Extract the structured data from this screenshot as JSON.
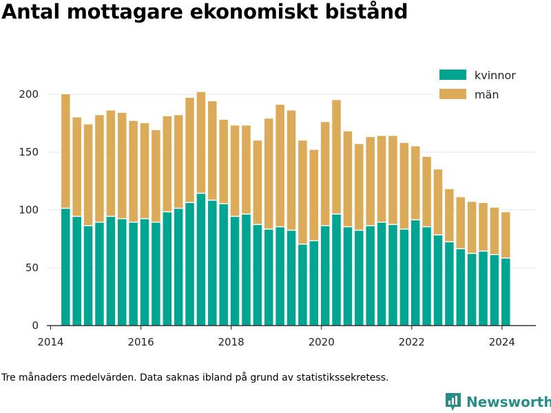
{
  "title": "Antal mottagare ekonomiskt bistånd",
  "footnote": "Tre månaders medelvärden. Data saknas ibland på grund av statistikssekretess.",
  "brand": {
    "name": "Newsworthy",
    "color": "#2a8c86"
  },
  "colors": {
    "kvinnor": "#00a591",
    "man": "#dbab5a",
    "grid": "#e3e3e3",
    "axis": "#333333"
  },
  "chart_data": {
    "type": "bar",
    "stacked": true,
    "legend_position": "top-right",
    "grid": true,
    "x_ticks": [
      "2014",
      "2016",
      "2018",
      "2020",
      "2022",
      "2024"
    ],
    "y_ticks": [
      "0",
      "50",
      "100",
      "150",
      "200"
    ],
    "xlim": [
      "2013-12",
      "2024-10"
    ],
    "ylim": [
      0,
      210
    ],
    "x": [
      "2014-05",
      "2014-08",
      "2014-11",
      "2015-02",
      "2015-05",
      "2015-08",
      "2015-11",
      "2016-02",
      "2016-05",
      "2016-08",
      "2016-11",
      "2017-02",
      "2017-05",
      "2017-08",
      "2017-11",
      "2018-02",
      "2018-05",
      "2018-08",
      "2018-11",
      "2019-02",
      "2019-05",
      "2019-08",
      "2019-11",
      "2020-02",
      "2020-05",
      "2020-08",
      "2020-11",
      "2021-02",
      "2021-05",
      "2021-08",
      "2021-11",
      "2022-02",
      "2022-05",
      "2022-08",
      "2022-11",
      "2023-02",
      "2023-05",
      "2023-08",
      "2023-11",
      "2024-02"
    ],
    "series": [
      {
        "name": "kvinnor",
        "values": [
          101,
          94,
          86,
          89,
          94,
          92,
          89,
          92,
          89,
          98,
          101,
          106,
          114,
          108,
          105,
          94,
          96,
          87,
          83,
          85,
          82,
          70,
          73,
          86,
          96,
          85,
          82,
          86,
          89,
          87,
          83,
          91,
          85,
          78,
          72,
          66,
          62,
          64,
          61,
          58
        ]
      },
      {
        "name": "män",
        "values": [
          99,
          86,
          88,
          93,
          92,
          92,
          88,
          83,
          80,
          83,
          81,
          91,
          88,
          86,
          73,
          79,
          77,
          73,
          96,
          106,
          104,
          90,
          79,
          90,
          99,
          83,
          75,
          77,
          75,
          77,
          75,
          64,
          61,
          57,
          46,
          45,
          45,
          42,
          41,
          40
        ]
      }
    ]
  }
}
